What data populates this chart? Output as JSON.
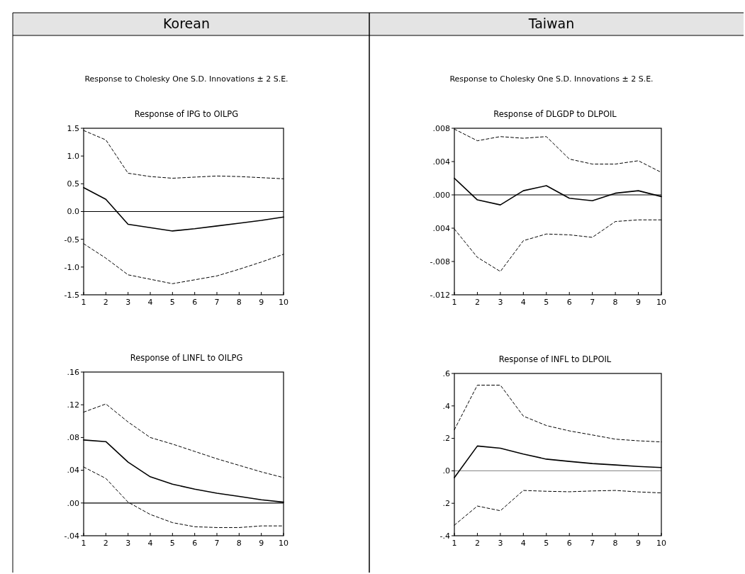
{
  "chart_data": [
    {
      "type": "line",
      "title": "Response of IPG to OILPG",
      "annotations": [
        "Korean",
        "Response to Cholesky One S.D. Innovations ± 2 S.E."
      ],
      "x": [
        1,
        2,
        3,
        4,
        5,
        6,
        7,
        8,
        9,
        10
      ],
      "xlim": [
        1,
        10
      ],
      "xticks": [
        1,
        2,
        3,
        4,
        5,
        6,
        7,
        8,
        9,
        10
      ],
      "ylim": [
        -1.5,
        1.5
      ],
      "yticks": [
        {
          "value": 1.5,
          "label": "1.5"
        },
        {
          "value": 1,
          "label": "1.0"
        },
        {
          "value": 0.5,
          "label": "0.5"
        },
        {
          "value": 0,
          "label": "0.0"
        },
        {
          "value": -0.5,
          "label": "-0.5"
        },
        {
          "value": -1,
          "label": "-1.0"
        },
        {
          "value": -1.5,
          "label": "-1.5"
        }
      ],
      "ref_lines": [
        {
          "axis": "y",
          "value": 0,
          "color": "#000000"
        }
      ],
      "series": [
        {
          "color": "#000000",
          "line_style": "solid",
          "values": [
            0.43,
            0.22,
            -0.23,
            -0.29,
            -0.35,
            -0.31,
            -0.26,
            -0.21,
            -0.16,
            -0.1
          ]
        },
        {
          "color": "#000000",
          "line_style": "dashed",
          "values": [
            1.46,
            1.29,
            0.69,
            0.63,
            0.6,
            0.62,
            0.64,
            0.63,
            0.61,
            0.59
          ]
        },
        {
          "color": "#000000",
          "line_style": "dashed",
          "values": [
            -0.58,
            -0.84,
            -1.14,
            -1.22,
            -1.3,
            -1.23,
            -1.16,
            -1.04,
            -0.91,
            -0.77
          ]
        }
      ]
    },
    {
      "type": "line",
      "title": "Response of DLGDP to DLPOIL",
      "annotations": [
        "Taiwan",
        "Response to Cholesky One S.D. Innovations ± 2 S.E."
      ],
      "x": [
        1,
        2,
        3,
        4,
        5,
        6,
        7,
        8,
        9,
        10
      ],
      "xlim": [
        1,
        10
      ],
      "xticks": [
        1,
        2,
        3,
        4,
        5,
        6,
        7,
        8,
        9,
        10
      ],
      "ylim": [
        -0.012,
        0.008
      ],
      "yticks": [
        {
          "value": 0.008,
          "label": ".008"
        },
        {
          "value": 0.004,
          "label": ".004"
        },
        {
          "value": 0,
          "label": ".000"
        },
        {
          "value": -0.004,
          "label": ".004"
        },
        {
          "value": -0.008,
          "label": "-.008"
        },
        {
          "value": -0.012,
          "label": "-.012"
        }
      ],
      "ref_lines": [
        {
          "axis": "y",
          "value": 0,
          "color": "#000000"
        }
      ],
      "series": [
        {
          "color": "#000000",
          "line_style": "solid",
          "values": [
            0.002,
            -0.0006,
            -0.0012,
            0.0005,
            0.0011,
            -0.0004,
            -0.0007,
            0.0002,
            0.0005,
            -0.0002
          ]
        },
        {
          "color": "#000000",
          "line_style": "dashed",
          "values": [
            0.0079,
            0.0065,
            0.007,
            0.0068,
            0.007,
            0.0043,
            0.0037,
            0.0037,
            0.0041,
            0.0027
          ]
        },
        {
          "color": "#000000",
          "line_style": "dashed",
          "values": [
            -0.0041,
            -0.0075,
            -0.0092,
            -0.0055,
            -0.0047,
            -0.0048,
            -0.0051,
            -0.0032,
            -0.003,
            -0.003
          ]
        }
      ]
    },
    {
      "type": "line",
      "title": "Response of LINFL to OILPG",
      "x": [
        1,
        2,
        3,
        4,
        5,
        6,
        7,
        8,
        9,
        10
      ],
      "xlim": [
        1,
        10
      ],
      "xticks": [
        1,
        2,
        3,
        4,
        5,
        6,
        7,
        8,
        9,
        10
      ],
      "ylim": [
        -0.04,
        0.16
      ],
      "yticks": [
        {
          "value": 0.16,
          "label": ".16"
        },
        {
          "value": 0.12,
          "label": ".12"
        },
        {
          "value": 0.08,
          "label": ".08"
        },
        {
          "value": 0.04,
          "label": ".04"
        },
        {
          "value": 0,
          "label": ".00"
        },
        {
          "value": -0.04,
          "label": "-.04"
        }
      ],
      "ref_lines": [
        {
          "axis": "y",
          "value": 0,
          "color": "#000000"
        }
      ],
      "series": [
        {
          "color": "#000000",
          "line_style": "solid",
          "values": [
            0.077,
            0.075,
            0.05,
            0.032,
            0.023,
            0.017,
            0.012,
            0.008,
            0.004,
            0.001
          ]
        },
        {
          "color": "#000000",
          "line_style": "dashed",
          "values": [
            0.111,
            0.121,
            0.099,
            0.08,
            0.072,
            0.063,
            0.054,
            0.046,
            0.038,
            0.031
          ]
        },
        {
          "color": "#000000",
          "line_style": "dashed",
          "values": [
            0.044,
            0.03,
            0.001,
            -0.014,
            -0.024,
            -0.029,
            -0.03,
            -0.03,
            -0.028,
            -0.028
          ]
        }
      ]
    },
    {
      "type": "line",
      "title": "Response of INFL to DLPOIL",
      "x": [
        1,
        2,
        3,
        4,
        5,
        6,
        7,
        8,
        9,
        10
      ],
      "xlim": [
        1,
        10
      ],
      "xticks": [
        1,
        2,
        3,
        4,
        5,
        6,
        7,
        8,
        9,
        10
      ],
      "ylim": [
        -0.4,
        0.6
      ],
      "yticks": [
        {
          "value": 0.6,
          "label": ".6"
        },
        {
          "value": 0.4,
          "label": ".4"
        },
        {
          "value": 0.2,
          "label": ".2"
        },
        {
          "value": 0,
          "label": ".0"
        },
        {
          "value": -0.2,
          "label": ".2"
        },
        {
          "value": -0.4,
          "label": "-.4"
        }
      ],
      "ref_lines": [
        {
          "axis": "y",
          "value": 0,
          "color": "#999999"
        }
      ],
      "series": [
        {
          "color": "#000000",
          "line_style": "solid",
          "values": [
            -0.042,
            0.153,
            0.139,
            0.103,
            0.072,
            0.058,
            0.045,
            0.036,
            0.027,
            0.02
          ]
        },
        {
          "color": "#000000",
          "line_style": "dashed",
          "values": [
            0.253,
            0.528,
            0.528,
            0.337,
            0.279,
            0.246,
            0.221,
            0.195,
            0.185,
            0.178
          ]
        },
        {
          "color": "#000000",
          "line_style": "dashed",
          "values": [
            -0.335,
            -0.217,
            -0.246,
            -0.121,
            -0.126,
            -0.129,
            -0.124,
            -0.121,
            -0.13,
            -0.136
          ]
        }
      ]
    }
  ]
}
